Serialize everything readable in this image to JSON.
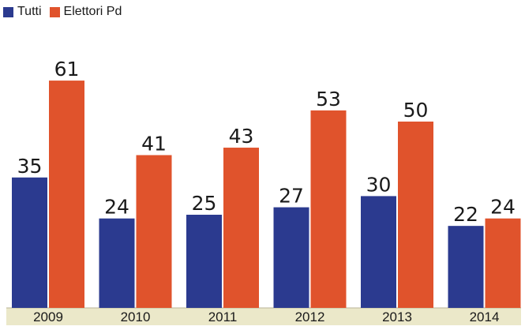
{
  "chart_data": {
    "type": "bar",
    "categories": [
      "2009",
      "2010",
      "2011",
      "2012",
      "2013",
      "2014"
    ],
    "series": [
      {
        "name": "Tutti",
        "color": "#2b3a8f",
        "values": [
          35,
          24,
          25,
          27,
          30,
          22
        ]
      },
      {
        "name": "Elettori Pd",
        "color": "#e0532c",
        "values": [
          61,
          41,
          43,
          53,
          50,
          24
        ]
      }
    ],
    "title": "",
    "xlabel": "",
    "ylabel": "",
    "ylim": [
      0,
      70
    ],
    "grid": false,
    "legend": "top-left",
    "data_labels": true
  }
}
